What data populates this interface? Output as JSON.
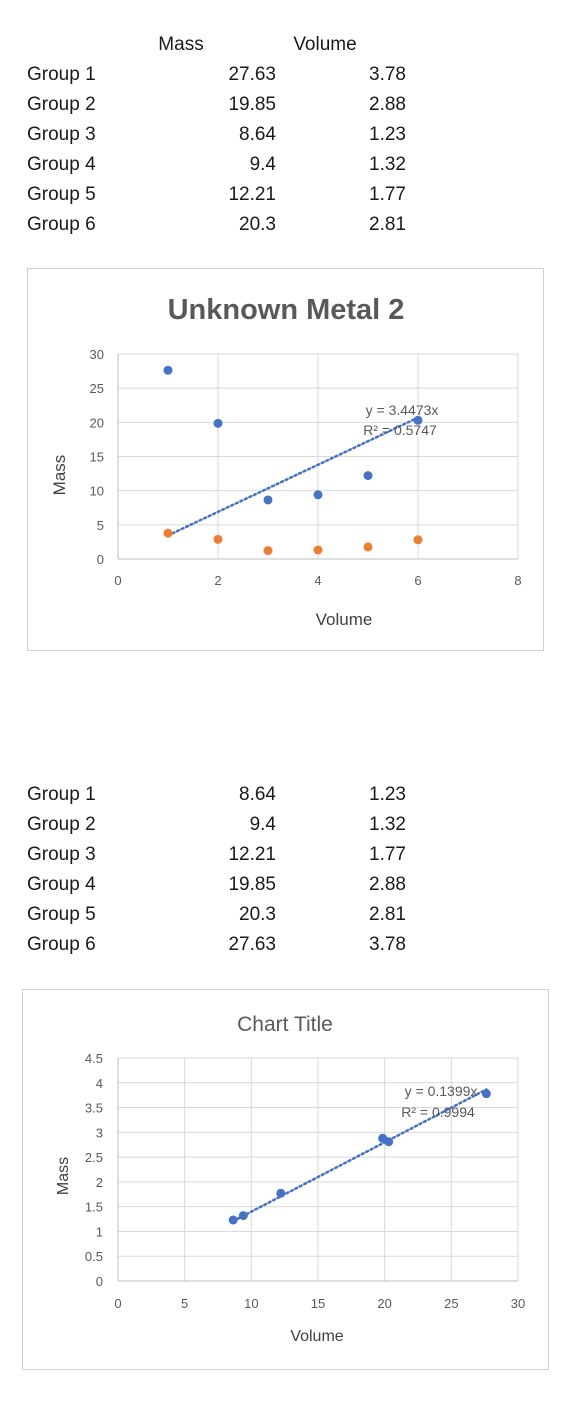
{
  "table1": {
    "headers": [
      "Mass",
      "Volume"
    ],
    "rows": [
      {
        "label": "Group 1",
        "mass": "27.63",
        "volume": "3.78"
      },
      {
        "label": "Group 2",
        "mass": "19.85",
        "volume": "2.88"
      },
      {
        "label": "Group 3",
        "mass": "8.64",
        "volume": "1.23"
      },
      {
        "label": "Group 4",
        "mass": "9.4",
        "volume": "1.32"
      },
      {
        "label": "Group 5",
        "mass": "12.21",
        "volume": "1.77"
      },
      {
        "label": "Group 6",
        "mass": "20.3",
        "volume": "2.81"
      }
    ]
  },
  "table2": {
    "rows": [
      {
        "label": "Group 1",
        "mass": "8.64",
        "volume": "1.23"
      },
      {
        "label": "Group 2",
        "mass": "9.4",
        "volume": "1.32"
      },
      {
        "label": "Group 3",
        "mass": "12.21",
        "volume": "1.77"
      },
      {
        "label": "Group 4",
        "mass": "19.85",
        "volume": "2.88"
      },
      {
        "label": "Group 5",
        "mass": "20.3",
        "volume": "2.81"
      },
      {
        "label": "Group 6",
        "mass": "27.63",
        "volume": "3.78"
      }
    ]
  },
  "chart_data": [
    {
      "type": "scatter",
      "title": "Unknown Metal 2",
      "xlabel": "Volume",
      "ylabel": "Mass",
      "xlim": [
        0,
        8
      ],
      "ylim": [
        0,
        30
      ],
      "x_ticks": [
        "0",
        "2",
        "4",
        "6",
        "8"
      ],
      "y_ticks": [
        "0",
        "5",
        "10",
        "15",
        "20",
        "25",
        "30"
      ],
      "grid": true,
      "series": [
        {
          "color": "#4472c4",
          "x": [
            1,
            2,
            3,
            4,
            5,
            6
          ],
          "y": [
            27.63,
            19.85,
            8.64,
            9.4,
            12.21,
            20.3
          ]
        },
        {
          "color": "#ed7d31",
          "x": [
            1,
            2,
            3,
            4,
            5,
            6
          ],
          "y": [
            3.78,
            2.88,
            1.23,
            1.32,
            1.77,
            2.81
          ]
        }
      ],
      "trendline": {
        "slope": 3.4473,
        "x_range": [
          1,
          6
        ],
        "color": "#4472c4",
        "style": "dotted"
      },
      "annotations": [
        "y = 3.4473x",
        "R² = 0.5747"
      ]
    },
    {
      "type": "scatter",
      "title": "Chart Title",
      "xlabel": "Volume",
      "ylabel": "Mass",
      "xlim": [
        0,
        30
      ],
      "ylim": [
        0,
        4.5
      ],
      "x_ticks": [
        "0",
        "5",
        "10",
        "15",
        "20",
        "25",
        "30"
      ],
      "y_ticks": [
        "0",
        "0.5",
        "1",
        "1.5",
        "2",
        "2.5",
        "3",
        "3.5",
        "4",
        "4.5"
      ],
      "grid": true,
      "series": [
        {
          "color": "#4472c4",
          "x": [
            8.64,
            9.4,
            12.21,
            19.85,
            20.3,
            27.63
          ],
          "y": [
            1.23,
            1.32,
            1.77,
            2.88,
            2.81,
            3.78
          ]
        }
      ],
      "trendline": {
        "slope": 0.1399,
        "x_range": [
          8.64,
          27.63
        ],
        "color": "#4472c4",
        "style": "dotted"
      },
      "annotations": [
        "y = 0.1399x",
        "R² = 0.9994"
      ]
    }
  ]
}
